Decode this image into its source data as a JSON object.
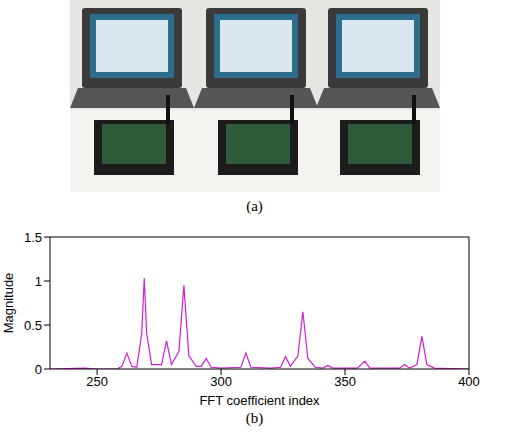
{
  "photo": {
    "caption": "(a)"
  },
  "chart_data": {
    "type": "line",
    "caption": "(b)",
    "xlabel": "FFT coefficient index",
    "ylabel": "Magnitude",
    "color": "#d21fd2",
    "x": [
      231,
      245,
      250,
      258,
      260,
      262,
      264,
      266,
      268,
      269,
      270,
      272,
      276,
      278,
      280,
      283,
      285,
      287,
      290,
      292,
      294,
      296,
      300,
      308,
      310,
      312,
      320,
      324,
      326,
      328,
      331,
      333,
      335,
      338,
      341,
      343,
      345,
      355,
      358,
      360,
      370,
      372,
      374,
      376,
      379,
      381,
      383,
      386,
      400
    ],
    "values": [
      0,
      0.01,
      0,
      0,
      0.03,
      0.18,
      0.03,
      0.02,
      0.4,
      1.03,
      0.4,
      0.05,
      0.05,
      0.32,
      0.05,
      0.2,
      0.95,
      0.15,
      0.03,
      0.03,
      0.12,
      0.02,
      0.01,
      0.02,
      0.18,
      0.02,
      0.01,
      0.02,
      0.14,
      0.03,
      0.15,
      0.65,
      0.12,
      0.02,
      0.01,
      0.04,
      0.01,
      0.01,
      0.09,
      0.01,
      0.01,
      0.01,
      0.05,
      0.01,
      0.05,
      0.37,
      0.05,
      0.01,
      0
    ],
    "xlim": [
      231,
      400
    ],
    "xticks": [
      250,
      300,
      350,
      400
    ],
    "ylim": [
      0,
      1.5
    ],
    "yticks": [
      0,
      0.5,
      1,
      1.5
    ]
  }
}
